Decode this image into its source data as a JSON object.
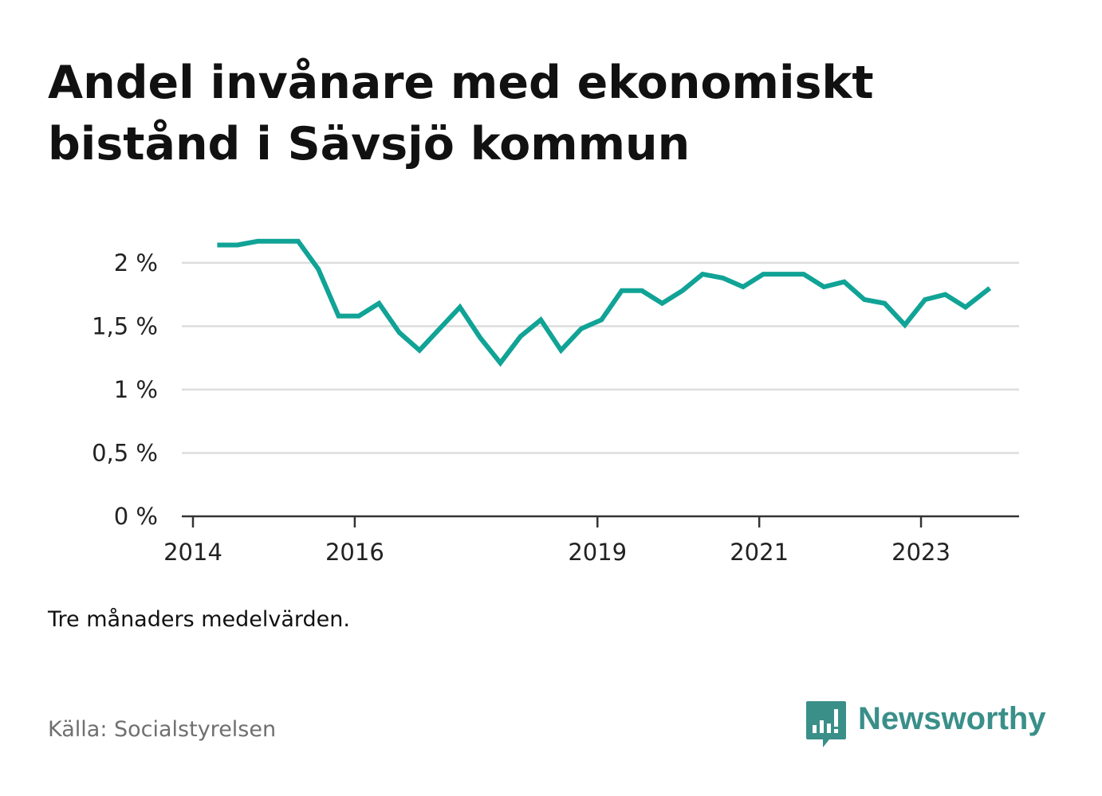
{
  "title": "Andel invånare med ekonomiskt bistånd i Sävsjö kommun",
  "note": "Tre månaders medelvärden.",
  "source": "Källa: Socialstyrelsen",
  "brand": {
    "name": "Newsworthy",
    "icon": "bar-chart-icon",
    "color": "#3a8f89"
  },
  "colors": {
    "line": "#10a396",
    "grid": "#dddddd",
    "axis": "#333333"
  },
  "chart_data": {
    "type": "line",
    "title": "Andel invånare med ekonomiskt bistånd i Sävsjö kommun",
    "xlabel": "",
    "ylabel": "",
    "xlim": [
      2014,
      2024.35
    ],
    "ylim": [
      0,
      2.2
    ],
    "y_ticks": [
      {
        "value": 0,
        "label": "0 %"
      },
      {
        "value": 0.5,
        "label": "0,5 %"
      },
      {
        "value": 1,
        "label": "1 %"
      },
      {
        "value": 1.5,
        "label": "1,5 %"
      },
      {
        "value": 2,
        "label": "2 %"
      }
    ],
    "x_ticks": [
      {
        "value": 2014,
        "label": "2014"
      },
      {
        "value": 2016,
        "label": "2016"
      },
      {
        "value": 2019,
        "label": "2019"
      },
      {
        "value": 2021,
        "label": "2021"
      },
      {
        "value": 2023,
        "label": "2023"
      }
    ],
    "grid": true,
    "series": [
      {
        "name": "Andel invånare med ekonomiskt bistånd",
        "x": [
          2014.3,
          2014.55,
          2014.8,
          2015.05,
          2015.3,
          2015.55,
          2015.8,
          2016.05,
          2016.3,
          2016.55,
          2016.8,
          2017.05,
          2017.3,
          2017.55,
          2017.8,
          2018.05,
          2018.3,
          2018.55,
          2018.8,
          2019.05,
          2019.3,
          2019.55,
          2019.8,
          2020.05,
          2020.3,
          2020.55,
          2020.8,
          2021.05,
          2021.3,
          2021.55,
          2021.8,
          2022.05,
          2022.3,
          2022.55,
          2022.8,
          2023.05,
          2023.3,
          2023.55,
          2023.85
        ],
        "values": [
          2.14,
          2.14,
          2.17,
          2.17,
          2.17,
          1.95,
          1.58,
          1.58,
          1.68,
          1.45,
          1.31,
          1.48,
          1.65,
          1.41,
          1.21,
          1.42,
          1.55,
          1.31,
          1.48,
          1.55,
          1.78,
          1.78,
          1.68,
          1.78,
          1.91,
          1.88,
          1.81,
          1.91,
          1.91,
          1.91,
          1.81,
          1.85,
          1.71,
          1.68,
          1.51,
          1.71,
          1.75,
          1.65,
          1.8
        ]
      }
    ]
  }
}
